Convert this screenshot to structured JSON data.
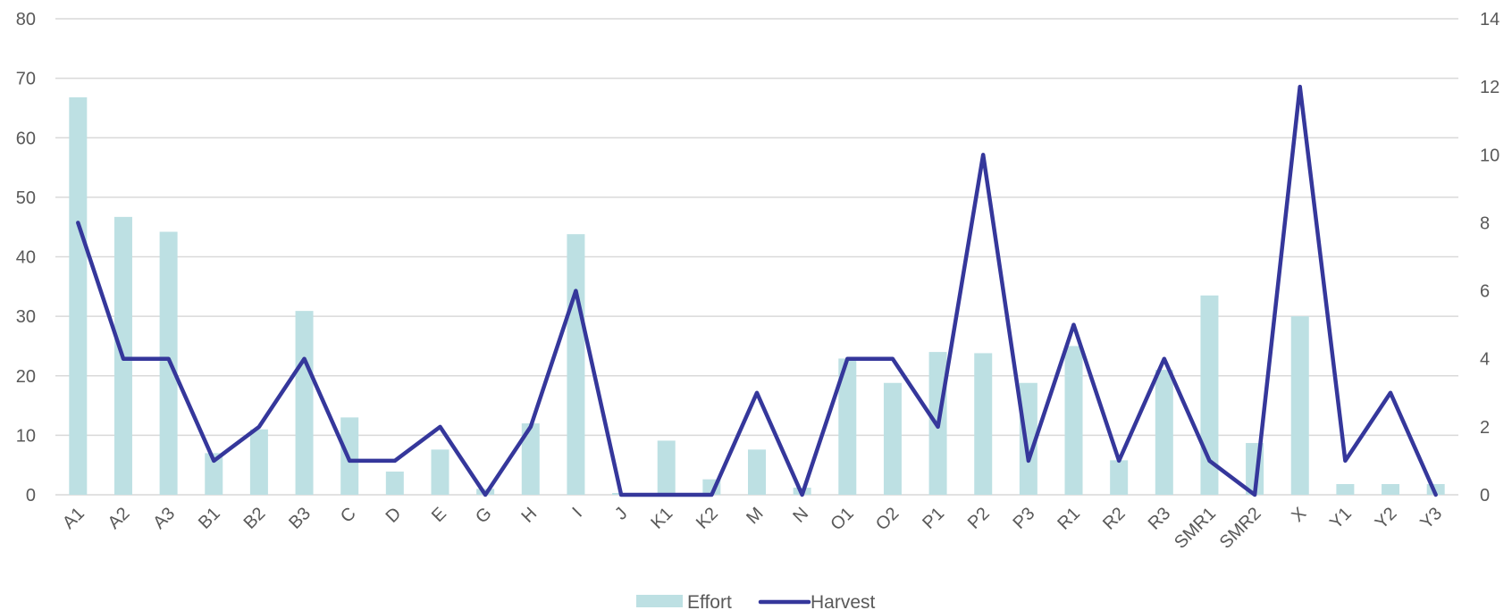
{
  "chart_data": {
    "type": "bar",
    "categories": [
      "A1",
      "A2",
      "A3",
      "B1",
      "B2",
      "B3",
      "C",
      "D",
      "E",
      "G",
      "H",
      "I",
      "J",
      "K1",
      "K2",
      "M",
      "N",
      "O1",
      "O2",
      "P1",
      "P2",
      "P3",
      "R1",
      "R2",
      "R3",
      "SMR1",
      "SMR2",
      "X",
      "Y1",
      "Y2",
      "Y3"
    ],
    "series": [
      {
        "name": "Effort",
        "type": "bar",
        "axis": "left",
        "color": "#bde0e3",
        "values": [
          66.8,
          46.7,
          44.2,
          7,
          11,
          30.9,
          13,
          3.9,
          7.6,
          1,
          12,
          43.8,
          0.3,
          9.1,
          2.6,
          7.6,
          1.2,
          22.9,
          18.8,
          24,
          23.8,
          18.8,
          25,
          5.8,
          21,
          33.5,
          8.7,
          30,
          1.8,
          1.8,
          1.8
        ]
      },
      {
        "name": "Harvest",
        "type": "line",
        "axis": "right",
        "color": "#35379b",
        "values": [
          8,
          4,
          4,
          1,
          2,
          4,
          1,
          1,
          2,
          0,
          2,
          6,
          0,
          0,
          0,
          3,
          0,
          4,
          4,
          2,
          10,
          1,
          5,
          1,
          4,
          1,
          0,
          12,
          1,
          3,
          0
        ]
      }
    ],
    "y_left": {
      "min": 0,
      "max": 80,
      "ticks": [
        0,
        10,
        20,
        30,
        40,
        50,
        60,
        70,
        80
      ]
    },
    "y_right": {
      "min": 0,
      "max": 14,
      "ticks": [
        0,
        2,
        4,
        6,
        8,
        10,
        12,
        14
      ]
    },
    "grid": true,
    "legend_position": "bottom",
    "title": "",
    "xlabel": "",
    "ylabel": ""
  }
}
